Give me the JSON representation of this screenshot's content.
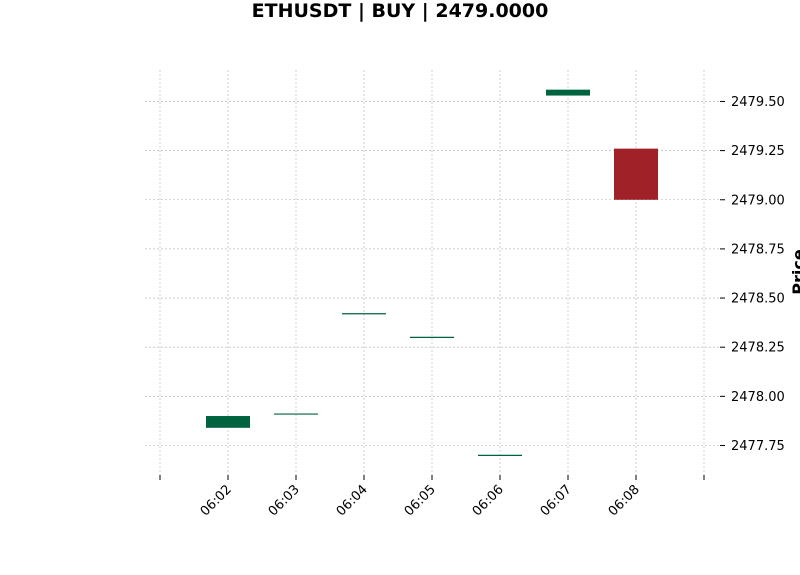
{
  "chart_data": {
    "type": "candlestick",
    "title": "ETHUSDT | BUY | 2479.0000",
    "xlabel": "",
    "ylabel": "Price",
    "x": [
      "06:02",
      "06:03",
      "06:04",
      "06:05",
      "06:06",
      "06:07",
      "06:08"
    ],
    "ylim": [
      2477.6,
      2479.66
    ],
    "yticks": [
      2477.75,
      2478.0,
      2478.25,
      2478.5,
      2478.75,
      2479.0,
      2479.25,
      2479.5
    ],
    "ytick_labels": [
      "2477.75",
      "2478.00",
      "2478.25",
      "2478.50",
      "2478.75",
      "2479.00",
      "2479.25",
      "2479.50"
    ],
    "grid": true,
    "candles": [
      {
        "time": "06:02",
        "open": 2477.84,
        "close": 2477.9,
        "high": 2477.9,
        "low": 2477.84
      },
      {
        "time": "06:03",
        "open": 2477.91,
        "close": 2477.91,
        "high": 2477.91,
        "low": 2477.91
      },
      {
        "time": "06:04",
        "open": 2478.42,
        "close": 2478.42,
        "high": 2478.42,
        "low": 2478.42
      },
      {
        "time": "06:05",
        "open": 2478.3,
        "close": 2478.3,
        "high": 2478.3,
        "low": 2478.3
      },
      {
        "time": "06:06",
        "open": 2477.7,
        "close": 2477.7,
        "high": 2477.7,
        "low": 2477.7
      },
      {
        "time": "06:07",
        "open": 2479.53,
        "close": 2479.56,
        "high": 2479.56,
        "low": 2479.53
      },
      {
        "time": "06:08",
        "open": 2479.26,
        "close": 2479.0,
        "high": 2479.26,
        "low": 2479.0
      }
    ],
    "colors": {
      "up": "#006340",
      "down": "#a02128",
      "grid": "#b0b0b0"
    }
  }
}
